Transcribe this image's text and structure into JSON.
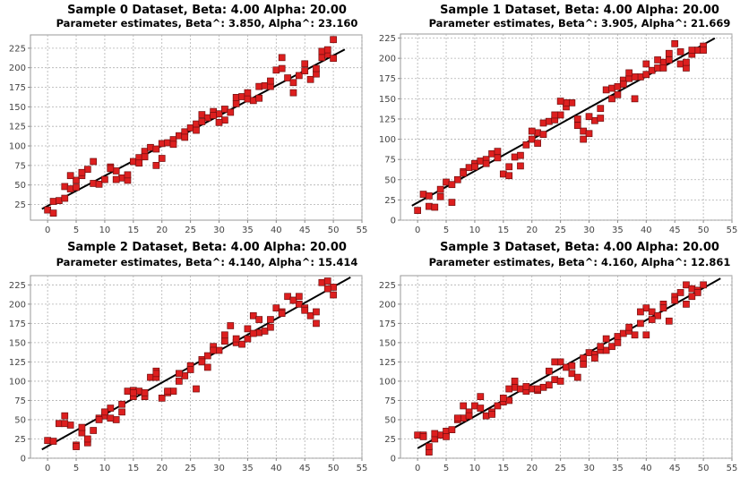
{
  "chart_data": [
    {
      "type": "scatter",
      "title": "Sample 0 Dataset, Beta: 4.00 Alpha: 20.00",
      "subtitle": "Parameter estimates, Beta^: 3.850, Alpha^: 23.160",
      "xlim": [
        -3,
        55
      ],
      "ylim": [
        5,
        242
      ],
      "xticks": [
        0,
        5,
        10,
        15,
        20,
        25,
        30,
        35,
        40,
        45,
        50,
        55
      ],
      "yticks": [
        25,
        50,
        75,
        100,
        125,
        150,
        175,
        200,
        225
      ],
      "grid": true,
      "fit": {
        "beta": 3.85,
        "alpha": 23.16,
        "x_range": [
          -1,
          52
        ]
      },
      "points": [
        [
          0,
          18
        ],
        [
          1,
          29
        ],
        [
          2,
          30
        ],
        [
          3,
          48
        ],
        [
          4,
          45
        ],
        [
          5,
          56
        ],
        [
          6,
          62
        ],
        [
          7,
          70
        ],
        [
          8,
          52
        ],
        [
          9,
          51
        ],
        [
          10,
          57
        ],
        [
          11,
          73
        ],
        [
          12,
          68
        ],
        [
          13,
          59
        ],
        [
          14,
          56
        ],
        [
          15,
          80
        ],
        [
          16,
          85
        ],
        [
          17,
          93
        ],
        [
          18,
          98
        ],
        [
          19,
          75
        ],
        [
          20,
          103
        ],
        [
          21,
          104
        ],
        [
          22,
          108
        ],
        [
          23,
          113
        ],
        [
          24,
          118
        ],
        [
          25,
          123
        ],
        [
          26,
          128
        ],
        [
          27,
          140
        ],
        [
          28,
          136
        ],
        [
          29,
          144
        ],
        [
          30,
          141
        ],
        [
          31,
          147
        ],
        [
          32,
          143
        ],
        [
          33,
          162
        ],
        [
          34,
          163
        ],
        [
          35,
          160
        ],
        [
          36,
          158
        ],
        [
          37,
          176
        ],
        [
          38,
          177
        ],
        [
          39,
          176
        ],
        [
          40,
          197
        ],
        [
          41,
          213
        ],
        [
          42,
          187
        ],
        [
          43,
          168
        ],
        [
          44,
          190
        ],
        [
          45,
          196
        ],
        [
          46,
          185
        ],
        [
          47,
          192
        ],
        [
          48,
          213
        ],
        [
          49,
          217
        ],
        [
          50,
          236
        ],
        [
          1,
          14
        ],
        [
          3,
          33
        ],
        [
          5,
          47
        ],
        [
          6,
          66
        ],
        [
          8,
          80
        ],
        [
          11,
          71
        ],
        [
          14,
          63
        ],
        [
          16,
          78
        ],
        [
          17,
          86
        ],
        [
          19,
          96
        ],
        [
          22,
          102
        ],
        [
          24,
          111
        ],
        [
          26,
          120
        ],
        [
          27,
          131
        ],
        [
          29,
          139
        ],
        [
          31,
          133
        ],
        [
          33,
          154
        ],
        [
          35,
          168
        ],
        [
          37,
          161
        ],
        [
          39,
          183
        ],
        [
          41,
          199
        ],
        [
          43,
          181
        ],
        [
          45,
          205
        ],
        [
          47,
          199
        ],
        [
          48,
          221
        ],
        [
          49,
          223
        ],
        [
          50,
          212
        ],
        [
          30,
          130
        ],
        [
          20,
          84
        ],
        [
          12,
          57
        ],
        [
          4,
          62
        ]
      ]
    },
    {
      "type": "scatter",
      "title": "Sample 1 Dataset, Beta: 4.00 Alpha: 20.00",
      "subtitle": "Parameter estimates, Beta^: 3.905, Alpha^: 21.669",
      "xlim": [
        -3,
        55
      ],
      "ylim": [
        0,
        230
      ],
      "xticks": [
        0,
        5,
        10,
        15,
        20,
        25,
        30,
        35,
        40,
        45,
        50,
        55
      ],
      "yticks": [
        0,
        25,
        50,
        75,
        100,
        125,
        150,
        175,
        200,
        225
      ],
      "grid": true,
      "fit": {
        "beta": 3.905,
        "alpha": 21.669,
        "x_range": [
          -1,
          52
        ]
      },
      "points": [
        [
          0,
          12
        ],
        [
          1,
          32
        ],
        [
          2,
          17
        ],
        [
          3,
          16
        ],
        [
          4,
          29
        ],
        [
          5,
          47
        ],
        [
          6,
          22
        ],
        [
          7,
          50
        ],
        [
          8,
          60
        ],
        [
          9,
          65
        ],
        [
          10,
          70
        ],
        [
          11,
          73
        ],
        [
          12,
          75
        ],
        [
          13,
          82
        ],
        [
          14,
          85
        ],
        [
          15,
          57
        ],
        [
          16,
          55
        ],
        [
          17,
          78
        ],
        [
          18,
          67
        ],
        [
          19,
          93
        ],
        [
          20,
          100
        ],
        [
          21,
          108
        ],
        [
          22,
          120
        ],
        [
          23,
          122
        ],
        [
          24,
          124
        ],
        [
          25,
          130
        ],
        [
          26,
          140
        ],
        [
          27,
          145
        ],
        [
          28,
          125
        ],
        [
          29,
          110
        ],
        [
          30,
          107
        ],
        [
          31,
          123
        ],
        [
          32,
          138
        ],
        [
          33,
          161
        ],
        [
          34,
          163
        ],
        [
          35,
          165
        ],
        [
          36,
          173
        ],
        [
          37,
          175
        ],
        [
          38,
          150
        ],
        [
          39,
          177
        ],
        [
          40,
          180
        ],
        [
          41,
          185
        ],
        [
          42,
          188
        ],
        [
          43,
          195
        ],
        [
          44,
          198
        ],
        [
          45,
          218
        ],
        [
          46,
          193
        ],
        [
          47,
          188
        ],
        [
          48,
          205
        ],
        [
          49,
          210
        ],
        [
          50,
          215
        ],
        [
          2,
          30
        ],
        [
          4,
          38
        ],
        [
          6,
          44
        ],
        [
          8,
          58
        ],
        [
          10,
          66
        ],
        [
          12,
          70
        ],
        [
          14,
          77
        ],
        [
          16,
          66
        ],
        [
          18,
          80
        ],
        [
          20,
          110
        ],
        [
          22,
          106
        ],
        [
          24,
          130
        ],
        [
          26,
          145
        ],
        [
          28,
          117
        ],
        [
          30,
          128
        ],
        [
          32,
          126
        ],
        [
          34,
          150
        ],
        [
          36,
          168
        ],
        [
          38,
          177
        ],
        [
          40,
          193
        ],
        [
          42,
          198
        ],
        [
          44,
          206
        ],
        [
          46,
          208
        ],
        [
          48,
          210
        ],
        [
          50,
          210
        ],
        [
          25,
          147
        ],
        [
          35,
          155
        ],
        [
          29,
          100
        ],
        [
          47,
          195
        ],
        [
          37,
          182
        ],
        [
          43,
          188
        ],
        [
          21,
          95
        ]
      ]
    },
    {
      "type": "scatter",
      "title": "Sample 2 Dataset, Beta: 4.00 Alpha: 20.00",
      "subtitle": "Parameter estimates, Beta^: 4.140, Alpha^: 15.414",
      "xlim": [
        -3,
        55
      ],
      "ylim": [
        0,
        237
      ],
      "xticks": [
        0,
        5,
        10,
        15,
        20,
        25,
        30,
        35,
        40,
        45,
        50,
        55
      ],
      "yticks": [
        0,
        25,
        50,
        75,
        100,
        125,
        150,
        175,
        200,
        225
      ],
      "grid": true,
      "fit": {
        "beta": 4.14,
        "alpha": 15.414,
        "x_range": [
          -1,
          53
        ]
      },
      "points": [
        [
          0,
          23
        ],
        [
          1,
          22
        ],
        [
          2,
          45
        ],
        [
          3,
          55
        ],
        [
          4,
          43
        ],
        [
          5,
          17
        ],
        [
          6,
          33
        ],
        [
          7,
          20
        ],
        [
          8,
          36
        ],
        [
          9,
          52
        ],
        [
          10,
          55
        ],
        [
          11,
          65
        ],
        [
          12,
          50
        ],
        [
          13,
          60
        ],
        [
          14,
          87
        ],
        [
          15,
          88
        ],
        [
          16,
          87
        ],
        [
          17,
          80
        ],
        [
          18,
          105
        ],
        [
          19,
          113
        ],
        [
          20,
          78
        ],
        [
          21,
          85
        ],
        [
          22,
          87
        ],
        [
          23,
          100
        ],
        [
          24,
          107
        ],
        [
          25,
          120
        ],
        [
          26,
          90
        ],
        [
          27,
          128
        ],
        [
          28,
          133
        ],
        [
          29,
          145
        ],
        [
          30,
          140
        ],
        [
          31,
          152
        ],
        [
          32,
          172
        ],
        [
          33,
          150
        ],
        [
          34,
          148
        ],
        [
          35,
          155
        ],
        [
          36,
          185
        ],
        [
          37,
          163
        ],
        [
          38,
          165
        ],
        [
          39,
          180
        ],
        [
          40,
          195
        ],
        [
          41,
          190
        ],
        [
          42,
          210
        ],
        [
          43,
          205
        ],
        [
          44,
          200
        ],
        [
          45,
          195
        ],
        [
          46,
          185
        ],
        [
          47,
          190
        ],
        [
          48,
          228
        ],
        [
          49,
          230
        ],
        [
          50,
          222
        ],
        [
          3,
          45
        ],
        [
          5,
          15
        ],
        [
          7,
          25
        ],
        [
          9,
          50
        ],
        [
          11,
          52
        ],
        [
          13,
          70
        ],
        [
          15,
          80
        ],
        [
          17,
          85
        ],
        [
          19,
          105
        ],
        [
          21,
          87
        ],
        [
          23,
          110
        ],
        [
          25,
          115
        ],
        [
          27,
          125
        ],
        [
          29,
          140
        ],
        [
          31,
          160
        ],
        [
          33,
          155
        ],
        [
          35,
          168
        ],
        [
          37,
          180
        ],
        [
          39,
          170
        ],
        [
          41,
          188
        ],
        [
          43,
          205
        ],
        [
          45,
          192
        ],
        [
          47,
          175
        ],
        [
          49,
          220
        ],
        [
          50,
          212
        ],
        [
          6,
          40
        ],
        [
          19,
          110
        ],
        [
          28,
          118
        ],
        [
          36,
          162
        ],
        [
          44,
          210
        ],
        [
          15,
          85
        ],
        [
          10,
          60
        ]
      ]
    },
    {
      "type": "scatter",
      "title": "Sample 3 Dataset, Beta: 4.00 Alpha: 20.00",
      "subtitle": "Parameter estimates, Beta^: 4.160, Alpha^: 12.861",
      "xlim": [
        -3,
        55
      ],
      "ylim": [
        0,
        237
      ],
      "xticks": [
        0,
        5,
        10,
        15,
        20,
        25,
        30,
        35,
        40,
        45,
        50,
        55
      ],
      "yticks": [
        0,
        25,
        50,
        75,
        100,
        125,
        150,
        175,
        200,
        225
      ],
      "grid": true,
      "fit": {
        "beta": 4.16,
        "alpha": 12.861,
        "x_range": [
          0,
          53
        ]
      },
      "points": [
        [
          0,
          30
        ],
        [
          1,
          30
        ],
        [
          2,
          8
        ],
        [
          3,
          25
        ],
        [
          4,
          30
        ],
        [
          5,
          35
        ],
        [
          6,
          37
        ],
        [
          7,
          50
        ],
        [
          8,
          52
        ],
        [
          9,
          60
        ],
        [
          10,
          68
        ],
        [
          11,
          65
        ],
        [
          12,
          55
        ],
        [
          13,
          60
        ],
        [
          14,
          68
        ],
        [
          15,
          73
        ],
        [
          16,
          75
        ],
        [
          17,
          92
        ],
        [
          18,
          90
        ],
        [
          19,
          87
        ],
        [
          20,
          90
        ],
        [
          21,
          88
        ],
        [
          22,
          92
        ],
        [
          23,
          95
        ],
        [
          24,
          102
        ],
        [
          25,
          125
        ],
        [
          26,
          118
        ],
        [
          27,
          110
        ],
        [
          28,
          105
        ],
        [
          29,
          122
        ],
        [
          30,
          137
        ],
        [
          31,
          135
        ],
        [
          32,
          140
        ],
        [
          33,
          140
        ],
        [
          34,
          145
        ],
        [
          35,
          158
        ],
        [
          36,
          162
        ],
        [
          37,
          165
        ],
        [
          38,
          160
        ],
        [
          39,
          175
        ],
        [
          40,
          195
        ],
        [
          41,
          190
        ],
        [
          42,
          185
        ],
        [
          43,
          200
        ],
        [
          44,
          178
        ],
        [
          45,
          210
        ],
        [
          46,
          215
        ],
        [
          47,
          225
        ],
        [
          48,
          220
        ],
        [
          49,
          218
        ],
        [
          50,
          225
        ],
        [
          1,
          28
        ],
        [
          3,
          32
        ],
        [
          5,
          28
        ],
        [
          7,
          52
        ],
        [
          9,
          55
        ],
        [
          11,
          80
        ],
        [
          13,
          57
        ],
        [
          15,
          78
        ],
        [
          17,
          100
        ],
        [
          19,
          93
        ],
        [
          21,
          90
        ],
        [
          23,
          113
        ],
        [
          25,
          100
        ],
        [
          27,
          120
        ],
        [
          29,
          130
        ],
        [
          31,
          130
        ],
        [
          33,
          155
        ],
        [
          35,
          150
        ],
        [
          37,
          170
        ],
        [
          39,
          190
        ],
        [
          41,
          180
        ],
        [
          43,
          195
        ],
        [
          45,
          205
        ],
        [
          47,
          200
        ],
        [
          49,
          215
        ],
        [
          2,
          15
        ],
        [
          8,
          68
        ],
        [
          16,
          90
        ],
        [
          24,
          125
        ],
        [
          32,
          145
        ],
        [
          40,
          160
        ],
        [
          48,
          210
        ]
      ]
    }
  ]
}
